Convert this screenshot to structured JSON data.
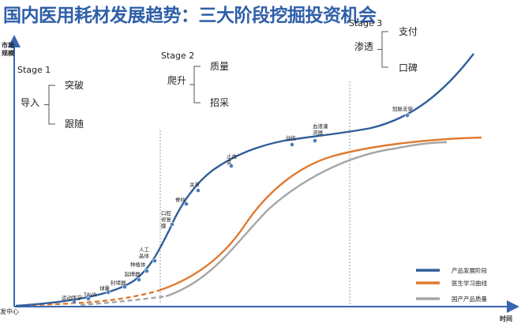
{
  "title": "国内医用耗材发展趋势：三大阶段挖掘投资机会",
  "top_right_note": "",
  "chart_data": {
    "type": "line",
    "xlabel": "时间",
    "ylabel": "市场规模",
    "origin_label": "发中心",
    "series": [
      {
        "name": "产品发展阶段",
        "color": "#2f5e99"
      },
      {
        "name": "医生学习曲线",
        "color": "#e07a30"
      },
      {
        "name": "国产产品质量",
        "color": "#a6a6a6"
      }
    ],
    "stages": [
      {
        "label": "Stage 1",
        "phase": "导入",
        "options": [
          "突破",
          "跟随"
        ]
      },
      {
        "label": "Stage 2",
        "phase": "爬升",
        "options": [
          "质量",
          "招采"
        ]
      },
      {
        "label": "Stage 3",
        "phase": "渗透",
        "options": [
          "支付",
          "口碑"
        ]
      }
    ],
    "points": [
      {
        "label": "运动医学"
      },
      {
        "label": "TAVR"
      },
      {
        "label": "球囊"
      },
      {
        "label": "封堵器"
      },
      {
        "label": "起搏器"
      },
      {
        "label": "种植体"
      },
      {
        "label": "人工晶体"
      },
      {
        "label": "口腔修复膜"
      },
      {
        "label": "脊柱"
      },
      {
        "label": "关节"
      },
      {
        "label": "止血夹"
      },
      {
        "label": "创伤"
      },
      {
        "label": "血液灌流器"
      },
      {
        "label": "冠脉支架"
      }
    ]
  }
}
